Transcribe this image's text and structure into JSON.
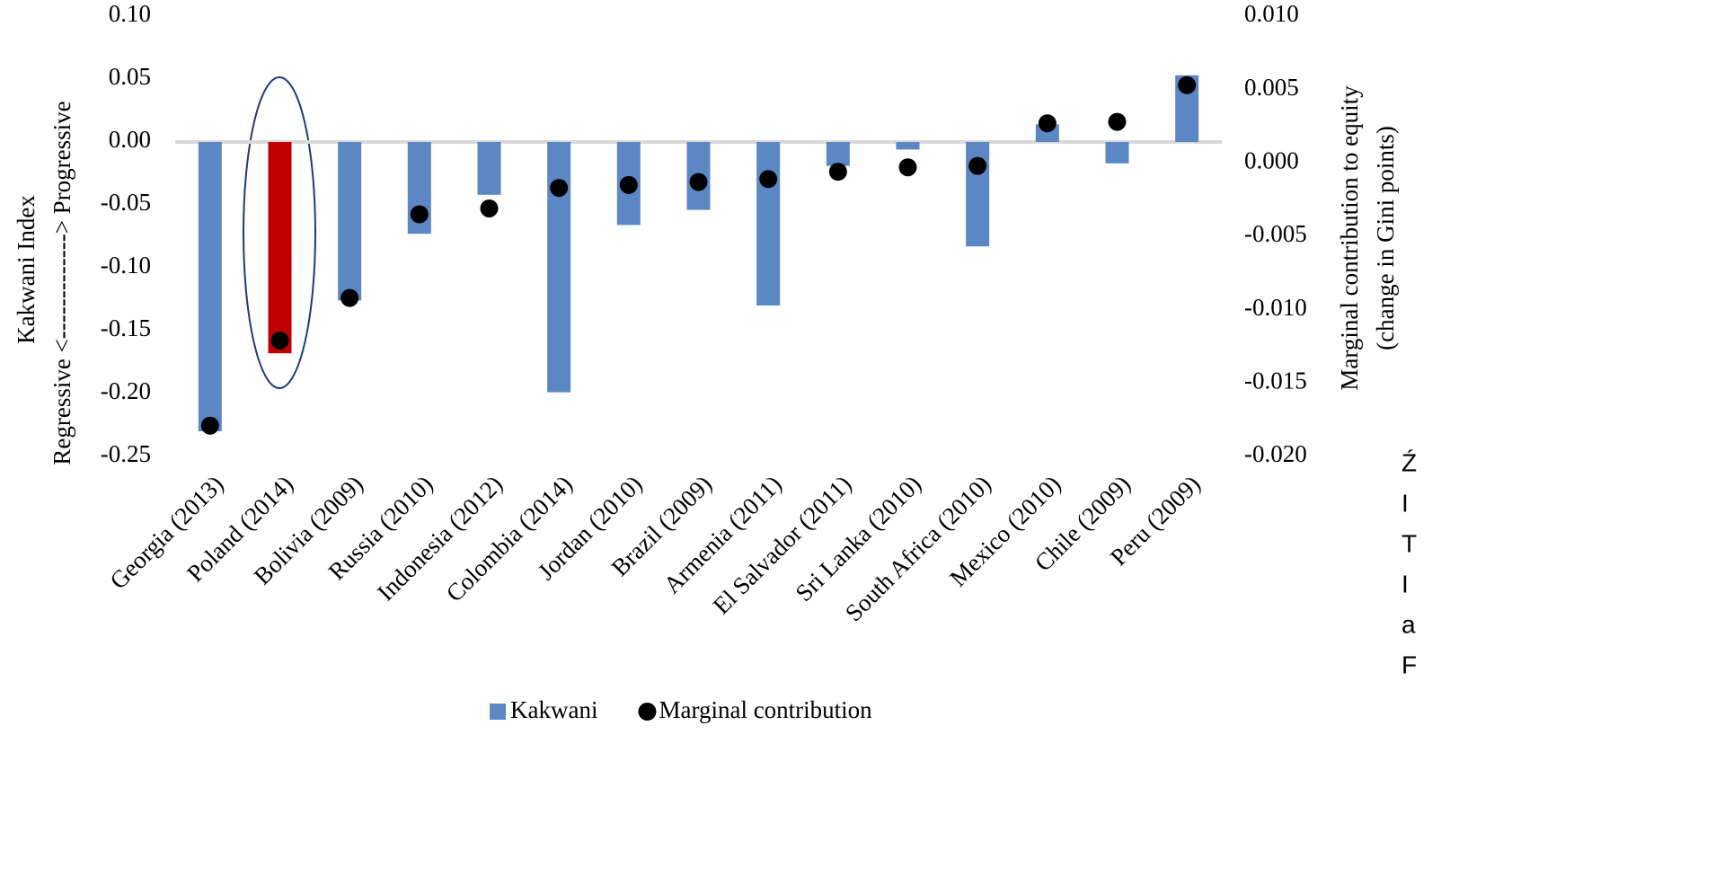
{
  "chart_data": {
    "type": "bar",
    "categories": [
      "Georgia (2013)",
      "Poland (2014)",
      "Bolivia (2009)",
      "Russia (2010)",
      "Indonesia (2012)",
      "Colombia (2014)",
      "Jordan (2010)",
      "Brazil (2009)",
      "Armenia (2011)",
      "El Salvador (2011)",
      "Sri Lanka (2010)",
      "South Africa (2010)",
      "Mexico (2010)",
      "Chile (2009)",
      "Peru (2009)"
    ],
    "series": [
      {
        "name": "Kakwani",
        "type": "bar",
        "color": "#5b87c5",
        "colors": [
          "#5b87c5",
          "#c00000",
          "#5b87c5",
          "#5b87c5",
          "#5b87c5",
          "#5b87c5",
          "#5b87c5",
          "#5b87c5",
          "#5b87c5",
          "#5b87c5",
          "#5b87c5",
          "#5b87c5",
          "#5b87c5",
          "#5b87c5",
          "#5b87c5"
        ],
        "values": [
          -0.23,
          -0.168,
          -0.126,
          -0.073,
          -0.042,
          -0.199,
          -0.066,
          -0.054,
          -0.13,
          -0.019,
          -0.006,
          -0.083,
          0.014,
          -0.017,
          0.053
        ]
      },
      {
        "name": "Marginal contribution",
        "type": "scatter",
        "axis": "y2",
        "color": "#000000",
        "values": [
          -0.0179,
          -0.0121,
          -0.0092,
          -0.0035,
          -0.0031,
          -0.0017,
          -0.0015,
          -0.0013,
          -0.0011,
          -0.0006,
          -0.0003,
          -0.0002,
          0.0027,
          0.0028,
          0.0053
        ]
      }
    ],
    "y_label": "Kakwani Index",
    "y_label_2": "Regressive <-------------> Progressive",
    "y2_label": "Marginal contribution to equity",
    "y2_label_2": "(change in Gini points)",
    "ylim": [
      -0.25,
      0.1
    ],
    "yticks": [
      {
        "value": 0.1,
        "label": "0.10"
      },
      0.05,
      {
        "value": 0,
        "label": "0.00"
      },
      -0.05,
      {
        "value": -0.1,
        "label": "-0.10"
      },
      -0.15,
      {
        "value": -0.2,
        "label": "-0.20"
      },
      -0.25
    ],
    "y2lim": [
      -0.02,
      0.01
    ],
    "y2ticks": [
      {
        "value": 0.01,
        "label": "0.010"
      },
      0.005,
      {
        "value": 0,
        "label": "0.000"
      },
      -0.005,
      {
        "value": -0.01,
        "label": "-0.010"
      },
      -0.015,
      {
        "value": -0.02,
        "label": "-0.020"
      }
    ],
    "legend": "bottom",
    "side_text": [
      "Ź",
      "I",
      "T",
      "I",
      "a",
      "F"
    ]
  }
}
